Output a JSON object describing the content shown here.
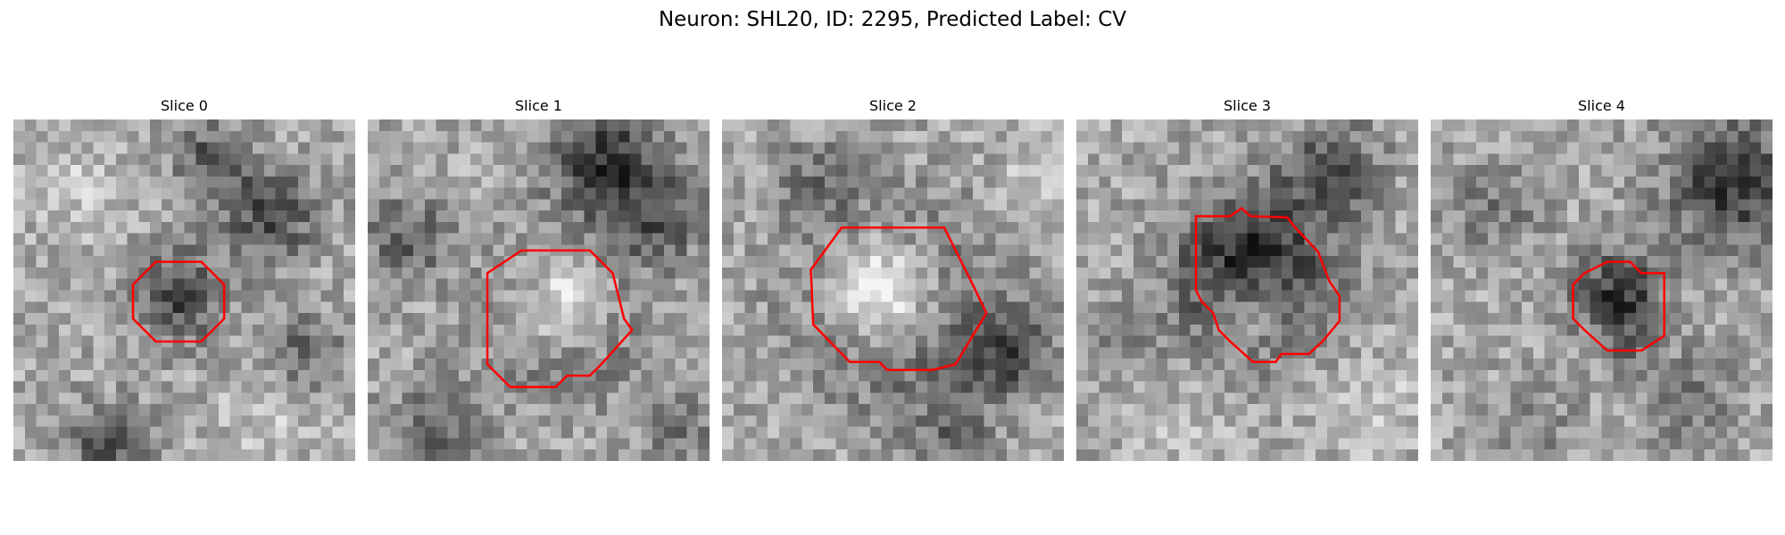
{
  "figure": {
    "title": "Neuron: SHL20, ID: 2295, Predicted Label: CV"
  },
  "colors": {
    "contour": "#ff0000",
    "background": "#ffffff"
  },
  "panels": [
    {
      "title": "Slice 0"
    },
    {
      "title": "Slice 1"
    },
    {
      "title": "Slice 2"
    },
    {
      "title": "Slice 3"
    },
    {
      "title": "Slice 4"
    }
  ]
}
